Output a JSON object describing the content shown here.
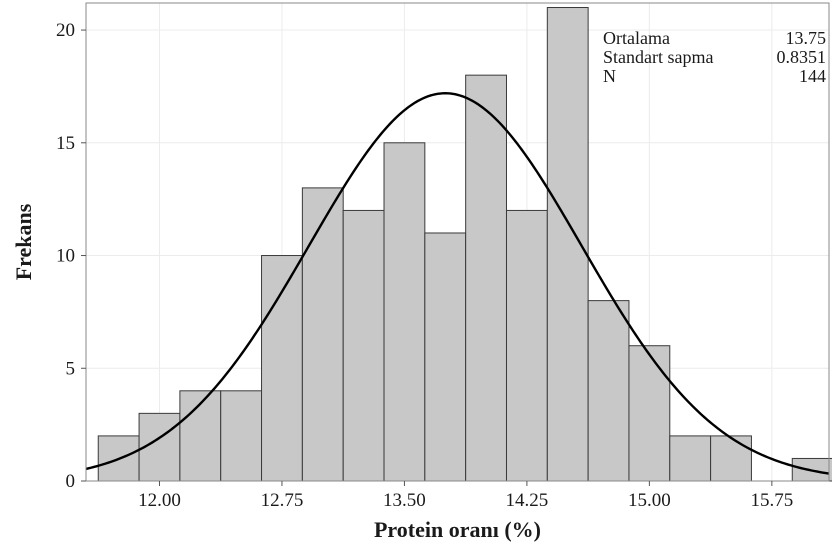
{
  "chart_data": {
    "type": "histogram",
    "xlabel": "Protein oranı (%)",
    "ylabel": "Frekans",
    "xlim": [
      11.55,
      16.1
    ],
    "ylim": [
      0,
      21.2
    ],
    "bin_width": 0.25,
    "bins": [
      {
        "start": 11.625,
        "end": 11.875,
        "count": 2
      },
      {
        "start": 11.875,
        "end": 12.125,
        "count": 3
      },
      {
        "start": 12.125,
        "end": 12.375,
        "count": 4
      },
      {
        "start": 12.375,
        "end": 12.625,
        "count": 4
      },
      {
        "start": 12.625,
        "end": 12.875,
        "count": 10
      },
      {
        "start": 12.875,
        "end": 13.125,
        "count": 13
      },
      {
        "start": 13.125,
        "end": 13.375,
        "count": 12
      },
      {
        "start": 13.375,
        "end": 13.625,
        "count": 15
      },
      {
        "start": 13.625,
        "end": 13.875,
        "count": 11
      },
      {
        "start": 13.875,
        "end": 14.125,
        "count": 18
      },
      {
        "start": 14.125,
        "end": 14.375,
        "count": 12
      },
      {
        "start": 14.375,
        "end": 14.625,
        "count": 21
      },
      {
        "start": 14.625,
        "end": 14.875,
        "count": 8
      },
      {
        "start": 14.875,
        "end": 15.125,
        "count": 6
      },
      {
        "start": 15.125,
        "end": 15.375,
        "count": 2
      },
      {
        "start": 15.375,
        "end": 15.625,
        "count": 2
      },
      {
        "start": 15.625,
        "end": 15.875,
        "count": 0
      },
      {
        "start": 15.875,
        "end": 16.125,
        "count": 1
      }
    ],
    "x_ticks": [
      {
        "value": 12.0,
        "label": "12.00"
      },
      {
        "value": 12.75,
        "label": "12.75"
      },
      {
        "value": 13.5,
        "label": "13.50"
      },
      {
        "value": 14.25,
        "label": "14.25"
      },
      {
        "value": 15.0,
        "label": "15.00"
      },
      {
        "value": 15.75,
        "label": "15.75"
      }
    ],
    "y_ticks": [
      {
        "value": 0,
        "label": "0"
      },
      {
        "value": 5,
        "label": "5"
      },
      {
        "value": 10,
        "label": "10"
      },
      {
        "value": 15,
        "label": "15"
      },
      {
        "value": 20,
        "label": "20"
      }
    ],
    "normal_fit": {
      "mean": 13.75,
      "sd": 0.8351,
      "n": 144
    },
    "legend": {
      "placement": "top-right",
      "rows": [
        {
          "label": "Ortalama",
          "value": "13.75"
        },
        {
          "label": "Standart sapma",
          "value": "0.8351"
        },
        {
          "label": "N",
          "value": "144"
        }
      ]
    },
    "grid": true,
    "colors": {
      "bar_fill": "#c8c8c8",
      "bar_stroke": "#3a3a3a",
      "curve": "#000000",
      "grid": "#ececec",
      "frame": "#888888"
    }
  }
}
